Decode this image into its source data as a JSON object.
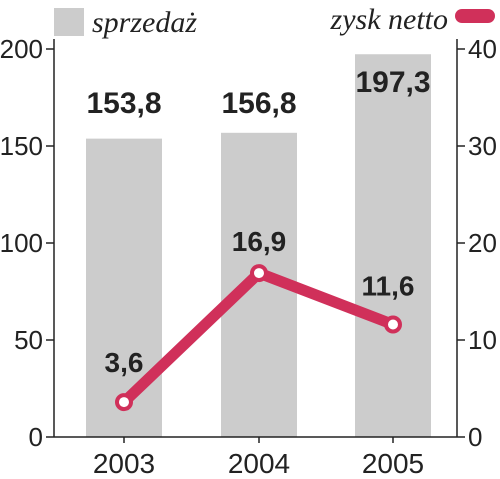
{
  "chart_data": {
    "type": "bar+line",
    "categories": [
      "2003",
      "2004",
      "2005"
    ],
    "series": [
      {
        "name": "sprzedaż",
        "type": "bar",
        "axis": "left",
        "values": [
          153.8,
          156.8,
          197.3
        ],
        "labels": [
          "153,8",
          "156,8",
          "197,3"
        ],
        "color": "#cccccc"
      },
      {
        "name": "zysk netto",
        "type": "line",
        "axis": "right",
        "values": [
          3.6,
          16.9,
          11.6
        ],
        "labels": [
          "3,6",
          "16,9",
          "11,6"
        ],
        "color": "#d0305a"
      }
    ],
    "y_left": {
      "range": [
        0,
        200
      ],
      "ticks": [
        "0",
        "50",
        "100",
        "150",
        "200"
      ]
    },
    "y_right": {
      "range": [
        0,
        40
      ],
      "ticks": [
        "0",
        "10",
        "20",
        "30",
        "40"
      ]
    },
    "grid": false,
    "legend_position": "top"
  }
}
